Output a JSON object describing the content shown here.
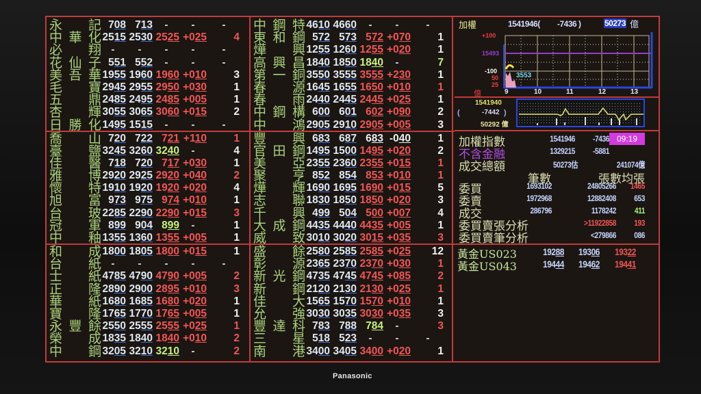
{
  "brand": "Panasonic",
  "colors": {
    "grid": "#c23b3b",
    "name": "#a9d27a",
    "up": "#f25555",
    "flat": "#c9f27a",
    "bidask": "#dfe8f2",
    "time_bg": "#d23be0"
  },
  "columns": [
    [
      [
        [
          "永記",
          "708",
          "713",
          "-",
          "-",
          "-",
          "w"
        ],
        [
          "中華化",
          "2515",
          "2530",
          "2525",
          "+025",
          "4",
          "r"
        ],
        [
          "必翔",
          "-",
          "-",
          "-",
          "-",
          "-",
          "w"
        ],
        [
          "花仙子",
          "551",
          "552",
          "-",
          "-",
          "-",
          "w"
        ],
        [
          "美吾華",
          "1955",
          "1960",
          "1960",
          "+010",
          "3",
          "w"
        ],
        [
          "毛寶",
          "2945",
          "2955",
          "2950",
          "+030",
          "1",
          "w"
        ],
        [
          "五鼎",
          "2485",
          "2495",
          "2485",
          "+005",
          "1",
          "w"
        ],
        [
          "杏輝",
          "3055",
          "3065",
          "3060",
          "+015",
          "2",
          "w"
        ],
        [
          "日勝化",
          "1495",
          "1515",
          "-",
          "-",
          "-",
          "w"
        ]
      ],
      [
        [
          "喬山",
          "720",
          "722",
          "721",
          "+110",
          "1",
          "r"
        ],
        [
          "臺鹽",
          "3245",
          "3260",
          "3240",
          "-",
          "4",
          "w"
        ],
        [
          "佳醫",
          "718",
          "720",
          "717",
          "+030",
          "1",
          "w"
        ],
        [
          "雅博",
          "2920",
          "2925",
          "2920",
          "+040",
          "2",
          "r"
        ],
        [
          "懷特",
          "1910",
          "1920",
          "1920",
          "+020",
          "4",
          "w"
        ],
        [
          "旭富",
          "973",
          "975",
          "974",
          "+010",
          "1",
          "w"
        ],
        [
          "台玻",
          "2285",
          "2290",
          "2290",
          "+015",
          "3",
          "r"
        ],
        [
          "冠軍",
          "899",
          "904",
          "899",
          "-",
          "1",
          "w"
        ],
        [
          "中釉",
          "1355",
          "1360",
          "1355",
          "+005",
          "1",
          "w"
        ]
      ],
      [
        [
          "和成",
          "1800",
          "1805",
          "1800",
          "+015",
          "1",
          "w"
        ],
        [
          "台紙",
          "-",
          "-",
          "-",
          "-",
          "-",
          "w"
        ],
        [
          "士紙",
          "4785",
          "4790",
          "4790",
          "+005",
          "2",
          "r"
        ],
        [
          "正隆",
          "2890",
          "2900",
          "2895",
          "+010",
          "3",
          "r"
        ],
        [
          "華紙",
          "1680",
          "1685",
          "1680",
          "+020",
          "1",
          "w"
        ],
        [
          "寶隆",
          "1765",
          "1770",
          "1765",
          "+005",
          "1",
          "w"
        ],
        [
          "永豐餘",
          "2550",
          "2555",
          "2555",
          "+025",
          "1",
          "r"
        ],
        [
          "榮成",
          "1835",
          "1840",
          "1840",
          "+010",
          "2",
          "r"
        ],
        [
          "中鋼",
          "3205",
          "3210",
          "3210",
          "-",
          "2",
          "r"
        ]
      ]
    ],
    [
      [
        [
          "中鋼特",
          "4610",
          "4660",
          "-",
          "-",
          "-",
          "w"
        ],
        [
          "東和鋼",
          "572",
          "573",
          "572",
          "+070",
          "1",
          "w"
        ],
        [
          "燁興",
          "1255",
          "1260",
          "1255",
          "+020",
          "1",
          "w"
        ],
        [
          "高興昌",
          "1840",
          "1850",
          "1840",
          "-",
          "7",
          "y"
        ],
        [
          "第一銅",
          "3550",
          "3555",
          "3555",
          "+230",
          "1",
          "w"
        ],
        [
          "春源",
          "1645",
          "1655",
          "1650",
          "+010",
          "1",
          "r"
        ],
        [
          "春雨",
          "2440",
          "2445",
          "2445",
          "+025",
          "1",
          "w"
        ],
        [
          "中鋼構",
          "600",
          "601",
          "602",
          "+090",
          "2",
          "w"
        ],
        [
          "中鴻",
          "2905",
          "2910",
          "2905",
          "+005",
          "3",
          "w"
        ]
      ],
      [
        [
          "豐興",
          "683",
          "687",
          "683",
          "-040",
          "1",
          "w"
        ],
        [
          "官田鋼",
          "1495",
          "1500",
          "1495",
          "+020",
          "2",
          "w"
        ],
        [
          "美亞",
          "2355",
          "2360",
          "2355",
          "+015",
          "1",
          "r"
        ],
        [
          "聚亨",
          "852",
          "854",
          "853",
          "+010",
          "1",
          "r"
        ],
        [
          "燁輝",
          "1690",
          "1695",
          "1690",
          "+015",
          "5",
          "w"
        ],
        [
          "志聯",
          "1830",
          "1850",
          "1850",
          "+020",
          "3",
          "w"
        ],
        [
          "千興",
          "499",
          "504",
          "500",
          "+007",
          "4",
          "w"
        ],
        [
          "大成鋼",
          "4435",
          "4440",
          "4435",
          "+005",
          "1",
          "w"
        ],
        [
          "威致",
          "3010",
          "3020",
          "3015",
          "+035",
          "3",
          "r"
        ]
      ],
      [
        [
          "盛餘",
          "2580",
          "2585",
          "2585",
          "+025",
          "12",
          "w"
        ],
        [
          "彰源",
          "2365",
          "2370",
          "2370",
          "+030",
          "1",
          "r"
        ],
        [
          "新光鋼",
          "4735",
          "4745",
          "4745",
          "+085",
          "2",
          "r"
        ],
        [
          "新鋼",
          "2120",
          "2130",
          "2130",
          "+025",
          "1",
          "r"
        ],
        [
          "佳大",
          "1565",
          "1570",
          "1570",
          "+010",
          "1",
          "w"
        ],
        [
          "允強",
          "3030",
          "3035",
          "3030",
          "+035",
          "3",
          "w"
        ],
        [
          "豐達科",
          "783",
          "788",
          "784",
          "-",
          "3",
          "r"
        ],
        [
          "三星",
          "518",
          "523",
          "-",
          "-",
          "-",
          "w"
        ],
        [
          "南港",
          "3400",
          "3405",
          "3400",
          "+020",
          "1",
          "w"
        ]
      ]
    ]
  ],
  "chart": {
    "label": "加權",
    "index": "1541946(",
    "change": "-7436 )",
    "volume": "50273",
    "unit": "億",
    "y_labels": [
      "+100",
      "15493",
      "-100",
      "50",
      "25"
    ],
    "x_labels": [
      "9",
      "10",
      "11",
      "12",
      "13"
    ],
    "mark": "3553"
  },
  "mini": {
    "index": "1541940",
    "open": "(",
    "change": "-7442",
    "close": ")",
    "volume": "50292 億"
  },
  "stats": {
    "index": {
      "label": "加權指數",
      "value": "1541946",
      "change": "-7436",
      "time": "09:19"
    },
    "ex_fin": {
      "label": "不含金融",
      "value": "1329215",
      "change": "-5881"
    },
    "turnover": {
      "label": "成交總額",
      "value": "50273估",
      "total": "241074億"
    },
    "header": {
      "c1": "筆數",
      "c2": "張數均張"
    },
    "rows": [
      {
        "label": "委買",
        "count": "1693102",
        "lots": "24805266",
        "avg": "1465"
      },
      {
        "label": "委賣",
        "count": "1972968",
        "lots": "12882408",
        "avg": "653"
      },
      {
        "label": "成交",
        "count": "286796",
        "lots": "1178242",
        "avg": "411"
      },
      {
        "label": "委買賣張分析",
        "count": "",
        "lots": ">11922858",
        "avg": "193"
      },
      {
        "label": "委買賣筆分析",
        "count": "",
        "lots": "<279866",
        "avg": "086"
      }
    ]
  },
  "gold": [
    {
      "label": "黃金US023",
      "v1": "19288",
      "v2": "19306",
      "v3": "19322"
    },
    {
      "label": "黃金US043",
      "v1": "19444",
      "v2": "19462",
      "v3": "19441"
    }
  ]
}
